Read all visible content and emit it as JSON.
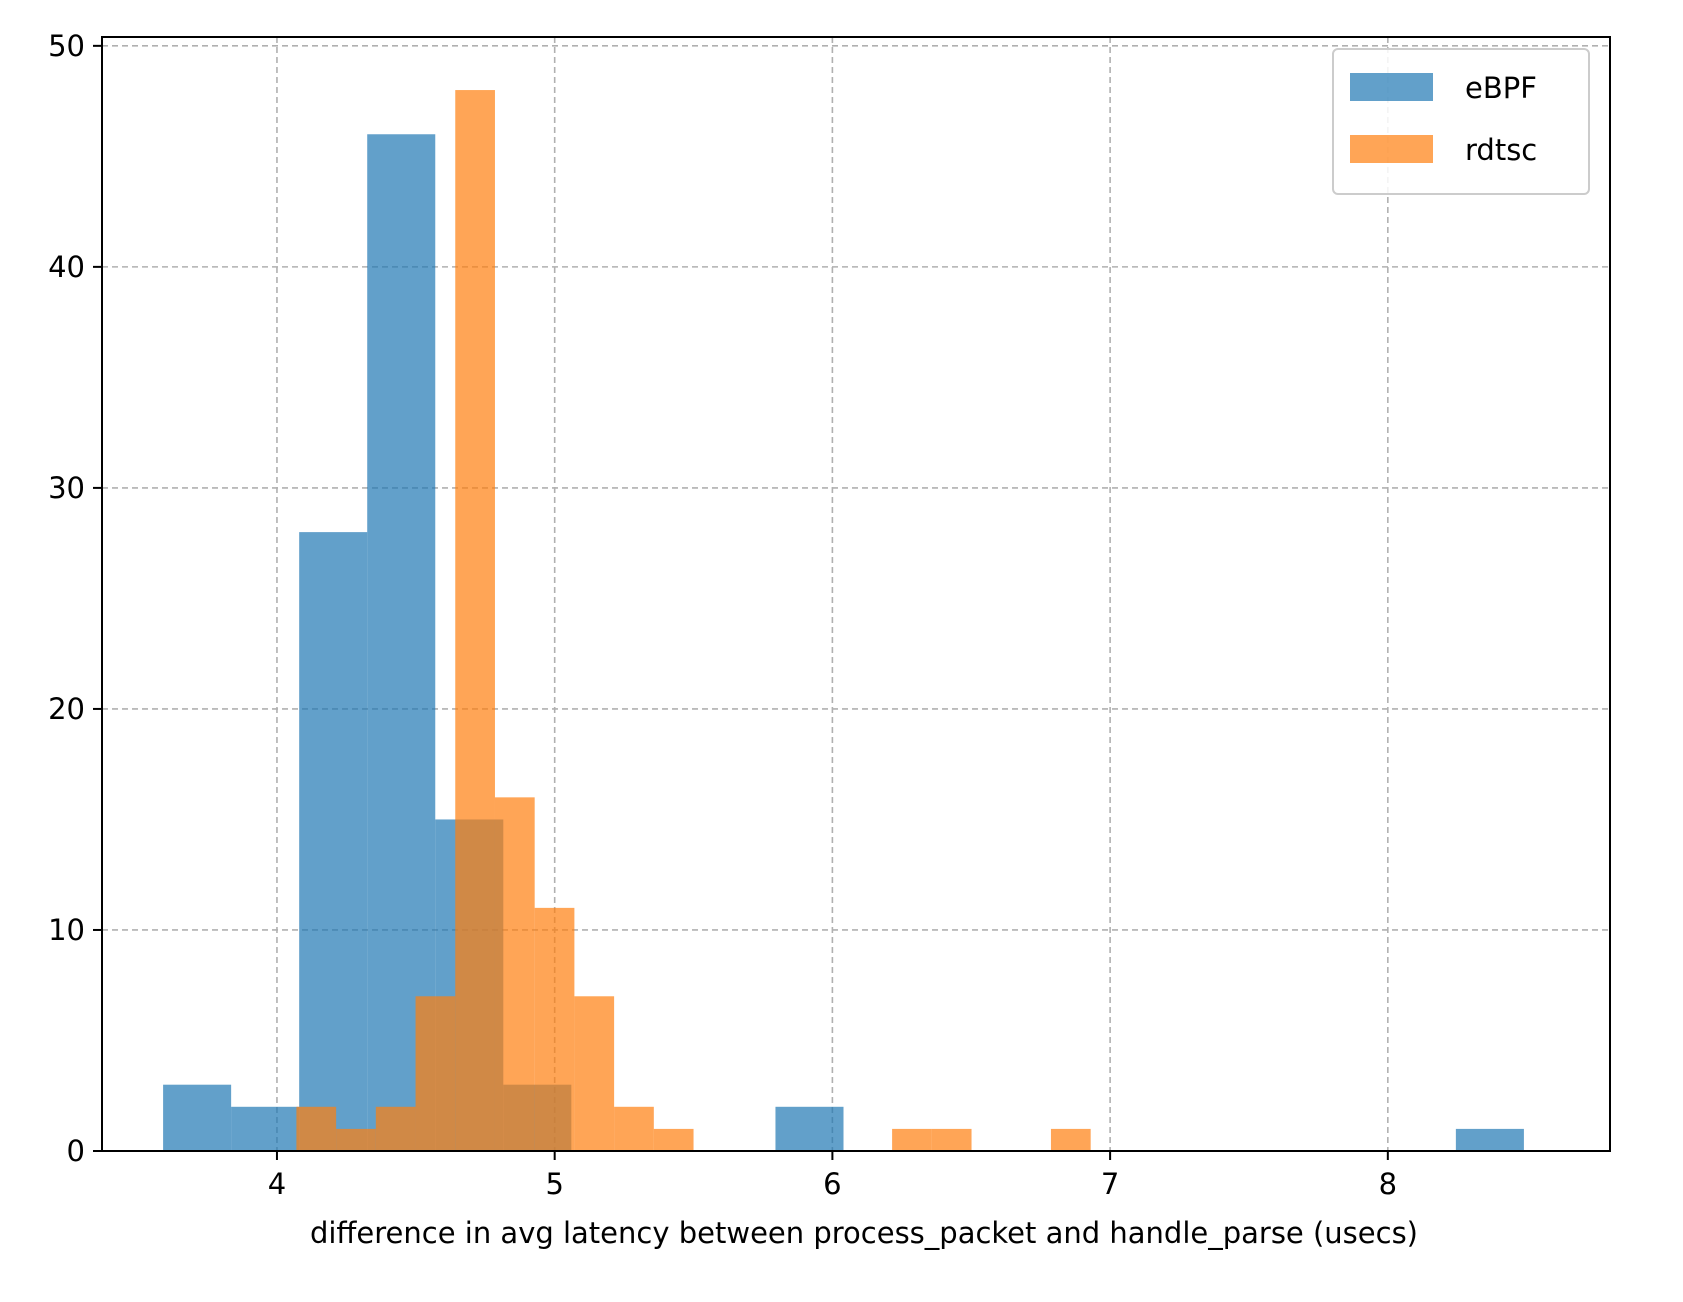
{
  "chart_data": {
    "type": "histogram",
    "xlabel": "difference in avg latency between process_packet and handle_parse (usecs)",
    "ylabel": "",
    "title": "",
    "xlim": [
      3.37,
      8.8
    ],
    "ylim": [
      0,
      50.4
    ],
    "xticks": [
      4,
      5,
      6,
      7,
      8
    ],
    "yticks": [
      0,
      10,
      20,
      30,
      40,
      50
    ],
    "grid": true,
    "legend_position": "top-right",
    "series": [
      {
        "name": "eBPF",
        "color": "#1f77b4",
        "opacity": 0.7,
        "bins": [
          {
            "x0": 3.59,
            "x1": 3.835,
            "count": 3
          },
          {
            "x0": 3.835,
            "x1": 4.08,
            "count": 2
          },
          {
            "x0": 4.08,
            "x1": 4.325,
            "count": 28
          },
          {
            "x0": 4.325,
            "x1": 4.57,
            "count": 46
          },
          {
            "x0": 4.57,
            "x1": 4.815,
            "count": 15
          },
          {
            "x0": 4.815,
            "x1": 5.06,
            "count": 3
          },
          {
            "x0": 5.06,
            "x1": 5.305,
            "count": 0
          },
          {
            "x0": 5.305,
            "x1": 5.55,
            "count": 0
          },
          {
            "x0": 5.55,
            "x1": 5.795,
            "count": 0
          },
          {
            "x0": 5.795,
            "x1": 6.04,
            "count": 2
          },
          {
            "x0": 6.04,
            "x1": 8.245,
            "count": 0
          },
          {
            "x0": 8.245,
            "x1": 8.49,
            "count": 1
          }
        ]
      },
      {
        "name": "rdtsc",
        "color": "#ff7f0e",
        "opacity": 0.7,
        "bins": [
          {
            "x0": 4.07,
            "x1": 4.213,
            "count": 2
          },
          {
            "x0": 4.213,
            "x1": 4.356,
            "count": 1
          },
          {
            "x0": 4.356,
            "x1": 4.499,
            "count": 2
          },
          {
            "x0": 4.499,
            "x1": 4.642,
            "count": 7
          },
          {
            "x0": 4.642,
            "x1": 4.785,
            "count": 48
          },
          {
            "x0": 4.785,
            "x1": 4.928,
            "count": 16
          },
          {
            "x0": 4.928,
            "x1": 5.071,
            "count": 11
          },
          {
            "x0": 5.071,
            "x1": 5.214,
            "count": 7
          },
          {
            "x0": 5.214,
            "x1": 5.357,
            "count": 2
          },
          {
            "x0": 5.357,
            "x1": 5.5,
            "count": 1
          },
          {
            "x0": 6.215,
            "x1": 6.358,
            "count": 1
          },
          {
            "x0": 6.358,
            "x1": 6.501,
            "count": 1
          },
          {
            "x0": 6.787,
            "x1": 6.93,
            "count": 1
          }
        ]
      }
    ]
  }
}
